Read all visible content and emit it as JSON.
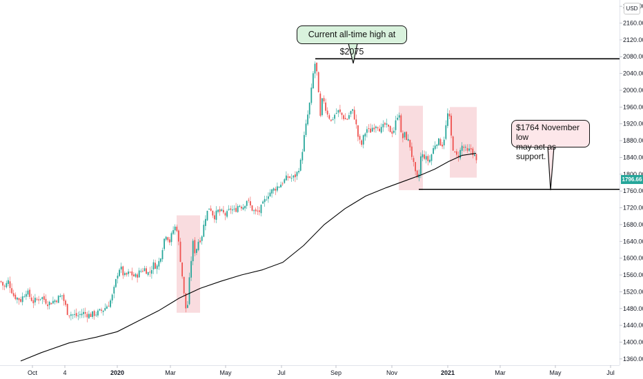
{
  "chart_data": {
    "type": "candlestick",
    "currency_badge": "USD",
    "last_price": "1796.66",
    "colors": {
      "up": "#26a69a",
      "down": "#ef5350",
      "moving_average": "#000000",
      "highlight_box": "#f7d3d7",
      "callout_green": "#d9f2dd",
      "callout_pink": "#fde7ea",
      "price_tag": "#26a69a"
    },
    "y_axis": {
      "ticks": [
        "1360.00",
        "1400.00",
        "1440.00",
        "1480.00",
        "1520.00",
        "1560.00",
        "1600.00",
        "1640.00",
        "1680.00",
        "1720.00",
        "1760.00",
        "1800.00",
        "1840.00",
        "1880.00",
        "1920.00",
        "1960.00",
        "2000.00",
        "2040.00",
        "2080.00",
        "2120.00",
        "2160.00",
        "2200.00"
      ],
      "range": [
        1345,
        2215
      ]
    },
    "x_axis": {
      "ticks": [
        {
          "label": "Oct",
          "bold": false
        },
        {
          "label": "4",
          "bold": false
        },
        {
          "label": "2020",
          "bold": true
        },
        {
          "label": "Mar",
          "bold": false
        },
        {
          "label": "May",
          "bold": false
        },
        {
          "label": "Jul",
          "bold": false
        },
        {
          "label": "Sep",
          "bold": false
        },
        {
          "label": "Nov",
          "bold": false
        },
        {
          "label": "2021",
          "bold": true
        },
        {
          "label": "Mar",
          "bold": false
        },
        {
          "label": "May",
          "bold": false
        },
        {
          "label": "Jul",
          "bold": false
        }
      ]
    },
    "price_path": [
      [
        0,
        1548
      ],
      [
        6,
        1530
      ],
      [
        12,
        1545
      ],
      [
        20,
        1510
      ],
      [
        30,
        1500
      ],
      [
        38,
        1522
      ],
      [
        48,
        1496
      ],
      [
        60,
        1508
      ],
      [
        70,
        1492
      ],
      [
        80,
        1500
      ],
      [
        90,
        1512
      ],
      [
        98,
        1470
      ],
      [
        106,
        1465
      ],
      [
        112,
        1462
      ],
      [
        120,
        1470
      ],
      [
        130,
        1464
      ],
      [
        142,
        1470
      ],
      [
        150,
        1478
      ],
      [
        158,
        1492
      ],
      [
        162,
        1505
      ],
      [
        166,
        1530
      ],
      [
        170,
        1562
      ],
      [
        174,
        1580
      ],
      [
        180,
        1556
      ],
      [
        188,
        1565
      ],
      [
        196,
        1555
      ],
      [
        204,
        1570
      ],
      [
        210,
        1575
      ],
      [
        216,
        1562
      ],
      [
        222,
        1585
      ],
      [
        228,
        1580
      ],
      [
        232,
        1600
      ],
      [
        236,
        1630
      ],
      [
        240,
        1660
      ],
      [
        246,
        1640
      ],
      [
        252,
        1672
      ],
      [
        256,
        1675
      ],
      [
        260,
        1620
      ],
      [
        264,
        1560
      ],
      [
        268,
        1490
      ],
      [
        271,
        1470
      ],
      [
        276,
        1580
      ],
      [
        280,
        1640
      ],
      [
        283,
        1610
      ],
      [
        287,
        1640
      ],
      [
        292,
        1650
      ],
      [
        298,
        1700
      ],
      [
        304,
        1725
      ],
      [
        310,
        1698
      ],
      [
        316,
        1712
      ],
      [
        322,
        1708
      ],
      [
        328,
        1702
      ],
      [
        334,
        1718
      ],
      [
        340,
        1712
      ],
      [
        346,
        1728
      ],
      [
        352,
        1722
      ],
      [
        358,
        1740
      ],
      [
        364,
        1720
      ],
      [
        370,
        1708
      ],
      [
        376,
        1712
      ],
      [
        382,
        1730
      ],
      [
        388,
        1752
      ],
      [
        394,
        1760
      ],
      [
        400,
        1768
      ],
      [
        406,
        1775
      ],
      [
        412,
        1785
      ],
      [
        418,
        1794
      ],
      [
        424,
        1790
      ],
      [
        430,
        1800
      ],
      [
        436,
        1830
      ],
      [
        440,
        1880
      ],
      [
        446,
        1940
      ],
      [
        450,
        1980
      ],
      [
        454,
        2040
      ],
      [
        457,
        2068
      ],
      [
        460,
        2030
      ],
      [
        464,
        1930
      ],
      [
        468,
        1990
      ],
      [
        472,
        1955
      ],
      [
        476,
        1942
      ],
      [
        480,
        1925
      ],
      [
        484,
        1940
      ],
      [
        490,
        1950
      ],
      [
        496,
        1940
      ],
      [
        502,
        1928
      ],
      [
        508,
        1948
      ],
      [
        512,
        1950
      ],
      [
        516,
        1918
      ],
      [
        520,
        1880
      ],
      [
        524,
        1870
      ],
      [
        528,
        1895
      ],
      [
        532,
        1908
      ],
      [
        536,
        1900
      ],
      [
        540,
        1912
      ],
      [
        546,
        1920
      ],
      [
        552,
        1905
      ],
      [
        558,
        1918
      ],
      [
        564,
        1906
      ],
      [
        570,
        1900
      ],
      [
        576,
        1940
      ],
      [
        578,
        1960
      ],
      [
        582,
        1880
      ],
      [
        586,
        1895
      ],
      [
        590,
        1885
      ],
      [
        594,
        1870
      ],
      [
        598,
        1835
      ],
      [
        602,
        1800
      ],
      [
        606,
        1780
      ],
      [
        610,
        1842
      ],
      [
        614,
        1845
      ],
      [
        618,
        1836
      ],
      [
        622,
        1830
      ],
      [
        626,
        1850
      ],
      [
        630,
        1870
      ],
      [
        634,
        1880
      ],
      [
        638,
        1875
      ],
      [
        642,
        1870
      ],
      [
        646,
        1910
      ],
      [
        650,
        1955
      ],
      [
        654,
        1890
      ],
      [
        658,
        1850
      ],
      [
        662,
        1842
      ],
      [
        666,
        1850
      ],
      [
        670,
        1868
      ],
      [
        674,
        1860
      ],
      [
        678,
        1850
      ],
      [
        682,
        1862
      ],
      [
        686,
        1850
      ],
      [
        690,
        1835
      ],
      [
        693,
        1797
      ]
    ],
    "moving_average": [
      [
        30,
        1355
      ],
      [
        60,
        1375
      ],
      [
        100,
        1398
      ],
      [
        140,
        1412
      ],
      [
        170,
        1425
      ],
      [
        200,
        1450
      ],
      [
        230,
        1475
      ],
      [
        260,
        1505
      ],
      [
        290,
        1528
      ],
      [
        320,
        1545
      ],
      [
        350,
        1560
      ],
      [
        380,
        1572
      ],
      [
        410,
        1590
      ],
      [
        440,
        1630
      ],
      [
        470,
        1680
      ],
      [
        500,
        1718
      ],
      [
        530,
        1748
      ],
      [
        560,
        1768
      ],
      [
        590,
        1786
      ],
      [
        610,
        1798
      ],
      [
        630,
        1812
      ],
      [
        650,
        1830
      ],
      [
        670,
        1845
      ],
      [
        690,
        1850
      ]
    ],
    "highlight_boxes": [
      {
        "x0": 256,
        "x1": 290,
        "y0": 1470,
        "y1": 1702
      },
      {
        "x0": 578,
        "x1": 613,
        "y0": 1762,
        "y1": 1963
      },
      {
        "x0": 652,
        "x1": 691,
        "y0": 1792,
        "y1": 1960
      }
    ],
    "horizontal_levels": [
      {
        "name": "all-time-high-line",
        "price": 2075,
        "x0": 457,
        "x1": 898
      },
      {
        "name": "november-low-line",
        "price": 1764,
        "x0": 607,
        "x1": 898
      }
    ],
    "annotations": {
      "ath_text": "Current all-time high at $2075",
      "low_text_line1": "$1764 November low",
      "low_text_line2": "may act as support."
    }
  }
}
